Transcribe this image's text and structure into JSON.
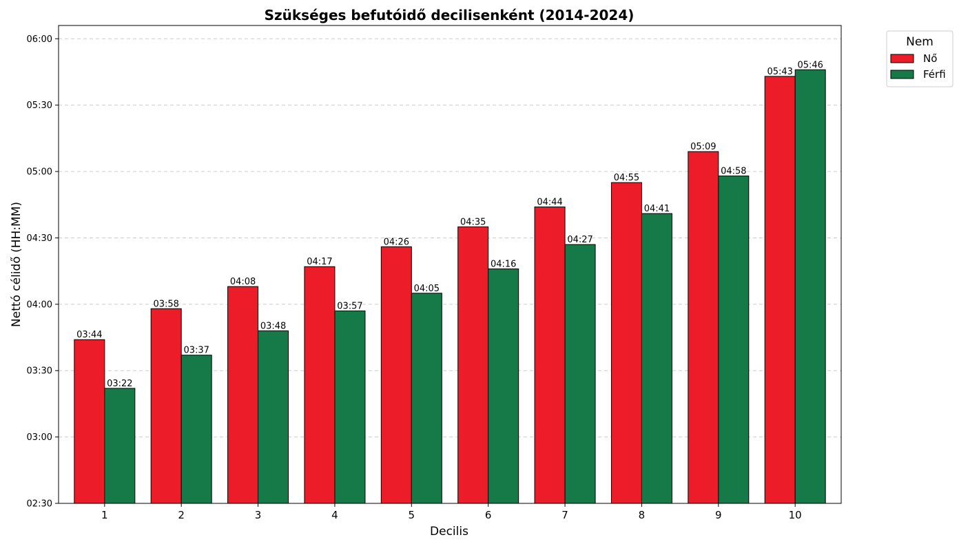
{
  "chart_data": {
    "type": "bar",
    "title": "Szükséges befutóidő decilisenként (2014-2024)",
    "xlabel": "Decilis",
    "ylabel": "Nettó célidő (HH:MM)",
    "categories": [
      "1",
      "2",
      "3",
      "4",
      "5",
      "6",
      "7",
      "8",
      "9",
      "10"
    ],
    "y_unit": "minutes",
    "ylim": [
      150,
      366
    ],
    "yticks": [
      150,
      180,
      210,
      240,
      270,
      300,
      330,
      360
    ],
    "ytick_labels": [
      "02:30",
      "03:00",
      "03:30",
      "04:00",
      "04:30",
      "05:00",
      "05:30",
      "06:00"
    ],
    "grid": "y, dashed",
    "legend": {
      "title": "Nem",
      "placement": "outside top-right"
    },
    "series": [
      {
        "name": "Nő",
        "color": "#ED1C29",
        "values": [
          224,
          238,
          248,
          257,
          266,
          275,
          284,
          295,
          309,
          343
        ],
        "labels": [
          "03:44",
          "03:58",
          "04:08",
          "04:17",
          "04:26",
          "04:35",
          "04:44",
          "04:55",
          "05:09",
          "05:43"
        ]
      },
      {
        "name": "Férfi",
        "color": "#167A48",
        "values": [
          202,
          217,
          228,
          237,
          245,
          256,
          267,
          281,
          298,
          346
        ],
        "labels": [
          "03:22",
          "03:37",
          "03:48",
          "03:57",
          "04:05",
          "04:16",
          "04:27",
          "04:41",
          "04:58",
          "05:46"
        ]
      }
    ]
  }
}
